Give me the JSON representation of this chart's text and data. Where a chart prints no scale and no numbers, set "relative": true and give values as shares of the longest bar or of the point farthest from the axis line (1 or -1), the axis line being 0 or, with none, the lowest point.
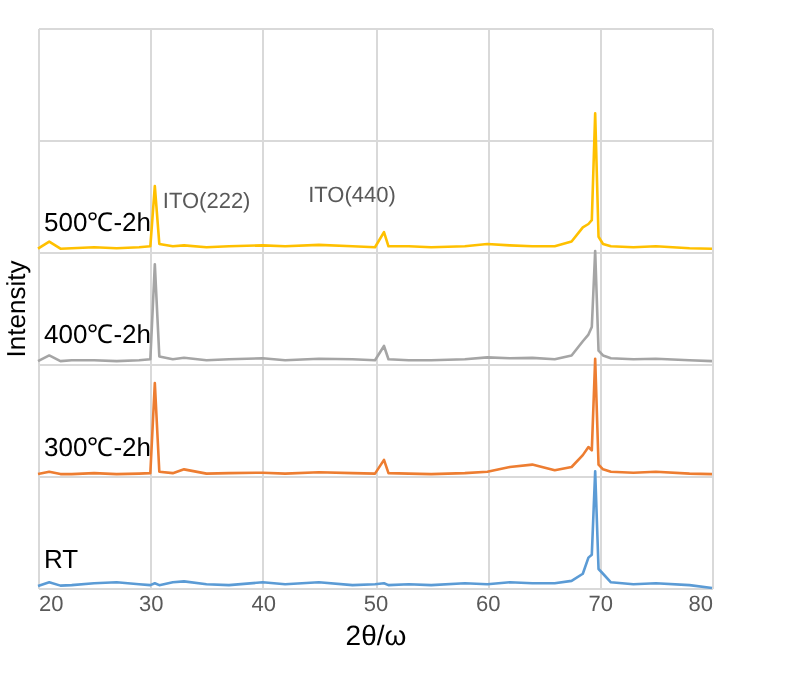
{
  "chart_data": {
    "type": "line",
    "relative": true,
    "xlabel": "2θ/ω",
    "ylabel": "Intensity",
    "xlim": [
      20,
      80
    ],
    "xticks": [
      20,
      30,
      40,
      50,
      60,
      70,
      80
    ],
    "grid": true,
    "line_style": "solid",
    "marker": "none",
    "x": [
      20,
      21,
      22,
      23,
      25,
      27,
      29,
      30,
      30.4,
      30.8,
      32,
      33,
      35,
      37,
      40,
      42,
      45,
      48,
      50,
      50.8,
      51.2,
      53,
      55,
      58,
      60,
      62,
      64,
      66,
      67.5,
      68.5,
      69,
      69.3,
      69.6,
      69.9,
      70.3,
      71,
      73,
      75,
      78,
      80
    ],
    "series": [
      {
        "name": "500℃-2h",
        "color": "#ffc000",
        "values": [
          0.715,
          0.73,
          0.715,
          0.716,
          0.718,
          0.716,
          0.718,
          0.72,
          0.847,
          0.725,
          0.72,
          0.722,
          0.718,
          0.72,
          0.722,
          0.72,
          0.723,
          0.72,
          0.718,
          0.75,
          0.72,
          0.72,
          0.718,
          0.72,
          0.725,
          0.722,
          0.72,
          0.72,
          0.73,
          0.76,
          0.767,
          0.775,
          1.0,
          0.74,
          0.725,
          0.72,
          0.718,
          0.72,
          0.716,
          0.715
        ]
      },
      {
        "name": "400℃-2h",
        "color": "#a5a5a5",
        "values": [
          0.478,
          0.49,
          0.478,
          0.48,
          0.48,
          0.478,
          0.48,
          0.482,
          0.682,
          0.488,
          0.482,
          0.485,
          0.48,
          0.482,
          0.484,
          0.48,
          0.483,
          0.482,
          0.48,
          0.51,
          0.482,
          0.48,
          0.48,
          0.482,
          0.486,
          0.484,
          0.485,
          0.482,
          0.49,
          0.52,
          0.534,
          0.55,
          0.71,
          0.5,
          0.49,
          0.484,
          0.482,
          0.483,
          0.48,
          0.478
        ]
      },
      {
        "name": "300℃-2h",
        "color": "#ed7d31",
        "values": [
          0.24,
          0.245,
          0.24,
          0.24,
          0.242,
          0.24,
          0.241,
          0.242,
          0.432,
          0.245,
          0.242,
          0.25,
          0.241,
          0.242,
          0.243,
          0.241,
          0.244,
          0.242,
          0.241,
          0.27,
          0.242,
          0.241,
          0.24,
          0.242,
          0.245,
          0.255,
          0.26,
          0.248,
          0.255,
          0.28,
          0.297,
          0.29,
          0.483,
          0.26,
          0.25,
          0.245,
          0.243,
          0.245,
          0.241,
          0.24
        ]
      },
      {
        "name": "RT",
        "color": "#5b9bd5",
        "values": [
          0.004,
          0.012,
          0.005,
          0.006,
          0.01,
          0.012,
          0.008,
          0.006,
          0.01,
          0.006,
          0.012,
          0.014,
          0.008,
          0.006,
          0.012,
          0.008,
          0.012,
          0.006,
          0.008,
          0.01,
          0.006,
          0.008,
          0.006,
          0.01,
          0.008,
          0.012,
          0.01,
          0.01,
          0.015,
          0.03,
          0.064,
          0.07,
          0.246,
          0.04,
          0.03,
          0.012,
          0.008,
          0.01,
          0.006,
          0.0
        ]
      }
    ],
    "annotations": [
      {
        "text": "ITO(222)",
        "x": 30.4,
        "y": 0.847
      },
      {
        "text": "ITO(440)",
        "x": 50.8,
        "y": 0.75
      }
    ]
  }
}
